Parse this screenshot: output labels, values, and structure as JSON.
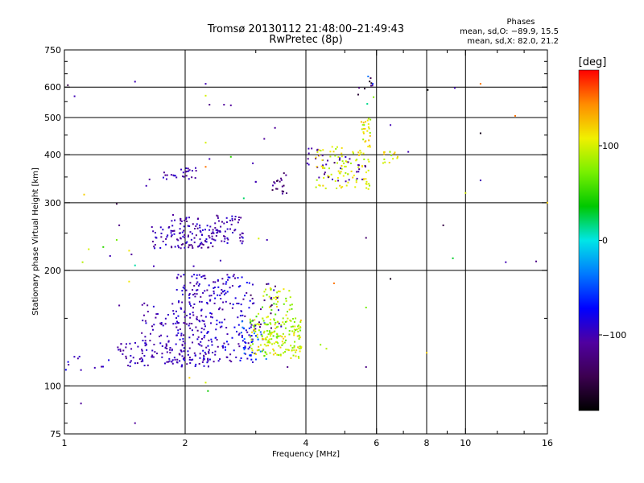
{
  "chart_data": {
    "type": "scatter",
    "title": "Tromsø 20130112 21:48:00–21:49:43",
    "subtitle": "RwPretec (8p)",
    "xlabel": "Frequency [MHz]",
    "ylabel": "Stationary phase Virtual Height [km]",
    "x_scale": "log",
    "y_scale": "log",
    "xlim": [
      1,
      16
    ],
    "ylim": [
      75,
      750
    ],
    "x_ticks": [
      1,
      2,
      4,
      6,
      8,
      10,
      16
    ],
    "x_tick_labels": [
      "1",
      "2",
      "4",
      "6",
      "8",
      "10",
      "16"
    ],
    "x_minor_ticks": [
      3,
      5,
      7,
      9,
      12,
      14
    ],
    "y_ticks": [
      75,
      100,
      200,
      300,
      400,
      500,
      600,
      750
    ],
    "y_tick_labels": [
      "75",
      "100",
      "200",
      "300",
      "400",
      "500",
      "600",
      "750"
    ],
    "y_minor_ticks": [
      80,
      90,
      150,
      250,
      350,
      450,
      550,
      650,
      700
    ],
    "x_grid": [
      2,
      4,
      6,
      8,
      10
    ],
    "y_grid": [
      100,
      200,
      300,
      400,
      500,
      600
    ],
    "grid": true,
    "phase_info": {
      "heading": "Phases",
      "line1": "mean, sd,O: −89.9, 15.5",
      "line2": "mean, sd,X:  82.0, 21.2"
    },
    "colorbar": {
      "label": "[deg]",
      "min": -180,
      "max": 180,
      "tick_values": [
        100,
        0,
        -100
      ],
      "tick_labels": [
        "100",
        "0",
        "−100"
      ],
      "colors": [
        "#000000",
        "#3c0050",
        "#5000a0",
        "#0000ff",
        "#0078ff",
        "#00e6e6",
        "#00c800",
        "#78f000",
        "#f0f000",
        "#ff8c00",
        "#ff0000"
      ]
    },
    "clusters": [
      {
        "x": [
          1.0,
          1.35
        ],
        "y": [
          110,
          120
        ],
        "phase": [
          -110,
          -75
        ],
        "n": 10
      },
      {
        "x": [
          1.35,
          2.0
        ],
        "y": [
          112,
          130
        ],
        "phase": [
          -115,
          -85
        ],
        "n": 70
      },
      {
        "x": [
          1.55,
          2.0
        ],
        "y": [
          115,
          165
        ],
        "phase": [
          -115,
          -85
        ],
        "n": 70
      },
      {
        "x": [
          1.9,
          2.3
        ],
        "y": [
          112,
          195
        ],
        "phase": [
          -115,
          -80
        ],
        "n": 160
      },
      {
        "x": [
          2.3,
          2.95
        ],
        "y": [
          115,
          195
        ],
        "phase": [
          -115,
          -70
        ],
        "n": 150
      },
      {
        "x": [
          2.75,
          3.2
        ],
        "y": [
          115,
          150
        ],
        "phase": [
          -90,
          -30
        ],
        "n": 30
      },
      {
        "x": [
          2.9,
          3.9
        ],
        "y": [
          118,
          150
        ],
        "phase": [
          60,
          125
        ],
        "n": 190
      },
      {
        "x": [
          3.0,
          3.7
        ],
        "y": [
          150,
          180
        ],
        "phase": [
          50,
          120
        ],
        "n": 40
      },
      {
        "x": [
          2.9,
          3.5
        ],
        "y": [
          140,
          185
        ],
        "phase": [
          -140,
          -90
        ],
        "n": 25
      },
      {
        "x": [
          1.65,
          2.4
        ],
        "y": [
          228,
          262
        ],
        "phase": [
          -120,
          -85
        ],
        "n": 110
      },
      {
        "x": [
          1.85,
          2.2
        ],
        "y": [
          255,
          280
        ],
        "phase": [
          -120,
          -85
        ],
        "n": 20
      },
      {
        "x": [
          2.35,
          2.8
        ],
        "y": [
          235,
          278
        ],
        "phase": [
          -120,
          -85
        ],
        "n": 55
      },
      {
        "x": [
          1.75,
          2.15
        ],
        "y": [
          345,
          370
        ],
        "phase": [
          -120,
          -85
        ],
        "n": 28
      },
      {
        "x": [
          3.3,
          3.6
        ],
        "y": [
          315,
          360
        ],
        "phase": [
          -150,
          -100
        ],
        "n": 20
      },
      {
        "x": [
          4.0,
          4.5
        ],
        "y": [
          370,
          420
        ],
        "phase": [
          -115,
          -90
        ],
        "n": 15
      },
      {
        "x": [
          4.2,
          5.8
        ],
        "y": [
          325,
          420
        ],
        "phase": [
          80,
          125
        ],
        "n": 95
      },
      {
        "x": [
          4.3,
          5.8
        ],
        "y": [
          340,
          400
        ],
        "phase": [
          -140,
          -90
        ],
        "n": 25
      },
      {
        "x": [
          5.5,
          5.8
        ],
        "y": [
          420,
          500
        ],
        "phase": [
          70,
          130
        ],
        "n": 25
      },
      {
        "x": [
          6.2,
          6.8
        ],
        "y": [
          380,
          410
        ],
        "phase": [
          80,
          130
        ],
        "n": 15
      },
      {
        "x": [
          5.4,
          5.9
        ],
        "y": [
          540,
          640
        ],
        "phase": [
          -180,
          120
        ],
        "n": 12
      }
    ],
    "points": [
      {
        "x": 1.02,
        "y": 607,
        "phase": -150
      },
      {
        "x": 1.06,
        "y": 568,
        "phase": -100
      },
      {
        "x": 1.5,
        "y": 620,
        "phase": -100
      },
      {
        "x": 2.25,
        "y": 612,
        "phase": -100
      },
      {
        "x": 2.25,
        "y": 570,
        "phase": 100
      },
      {
        "x": 2.3,
        "y": 540,
        "phase": -120
      },
      {
        "x": 2.5,
        "y": 540,
        "phase": -110
      },
      {
        "x": 2.6,
        "y": 538,
        "phase": -110
      },
      {
        "x": 3.35,
        "y": 470,
        "phase": -110
      },
      {
        "x": 3.15,
        "y": 440,
        "phase": -110
      },
      {
        "x": 2.25,
        "y": 430,
        "phase": 100
      },
      {
        "x": 2.3,
        "y": 390,
        "phase": -100
      },
      {
        "x": 2.6,
        "y": 395,
        "phase": 50
      },
      {
        "x": 2.95,
        "y": 380,
        "phase": -100
      },
      {
        "x": 1.63,
        "y": 345,
        "phase": -110
      },
      {
        "x": 1.6,
        "y": 332,
        "phase": -100
      },
      {
        "x": 2.25,
        "y": 372,
        "phase": 150
      },
      {
        "x": 3.0,
        "y": 340,
        "phase": -100
      },
      {
        "x": 1.12,
        "y": 315,
        "phase": 120
      },
      {
        "x": 1.35,
        "y": 298,
        "phase": -150
      },
      {
        "x": 2.8,
        "y": 308,
        "phase": 20
      },
      {
        "x": 3.0,
        "y": 340,
        "phase": -100
      },
      {
        "x": 1.37,
        "y": 262,
        "phase": -120
      },
      {
        "x": 1.25,
        "y": 230,
        "phase": 50
      },
      {
        "x": 1.15,
        "y": 227,
        "phase": 100
      },
      {
        "x": 1.45,
        "y": 225,
        "phase": 110
      },
      {
        "x": 1.47,
        "y": 220,
        "phase": -110
      },
      {
        "x": 1.35,
        "y": 240,
        "phase": 70
      },
      {
        "x": 1.11,
        "y": 210,
        "phase": 90
      },
      {
        "x": 1.3,
        "y": 218,
        "phase": -100
      },
      {
        "x": 2.45,
        "y": 212,
        "phase": -100
      },
      {
        "x": 3.05,
        "y": 242,
        "phase": 100
      },
      {
        "x": 3.2,
        "y": 240,
        "phase": -100
      },
      {
        "x": 1.5,
        "y": 206,
        "phase": 10
      },
      {
        "x": 1.45,
        "y": 187,
        "phase": 110
      },
      {
        "x": 1.37,
        "y": 162,
        "phase": -110
      },
      {
        "x": 1.67,
        "y": 205,
        "phase": -100
      },
      {
        "x": 2.1,
        "y": 205,
        "phase": -100
      },
      {
        "x": 2.05,
        "y": 105,
        "phase": 120
      },
      {
        "x": 2.25,
        "y": 102,
        "phase": 100
      },
      {
        "x": 2.28,
        "y": 97,
        "phase": 40
      },
      {
        "x": 1.1,
        "y": 90,
        "phase": -110
      },
      {
        "x": 1.5,
        "y": 80,
        "phase": -110
      },
      {
        "x": 1.1,
        "y": 110,
        "phase": -100
      },
      {
        "x": 3.6,
        "y": 112,
        "phase": -120
      },
      {
        "x": 4.35,
        "y": 128,
        "phase": 80
      },
      {
        "x": 4.5,
        "y": 125,
        "phase": 90
      },
      {
        "x": 4.7,
        "y": 185,
        "phase": 150
      },
      {
        "x": 5.65,
        "y": 243,
        "phase": -130
      },
      {
        "x": 5.65,
        "y": 160,
        "phase": 70
      },
      {
        "x": 5.65,
        "y": 112,
        "phase": -120
      },
      {
        "x": 6.5,
        "y": 190,
        "phase": -170
      },
      {
        "x": 6.5,
        "y": 478,
        "phase": -100
      },
      {
        "x": 7.2,
        "y": 407,
        "phase": -100
      },
      {
        "x": 8.05,
        "y": 590,
        "phase": -180
      },
      {
        "x": 8.0,
        "y": 122,
        "phase": 120
      },
      {
        "x": 8.8,
        "y": 262,
        "phase": -150
      },
      {
        "x": 9.3,
        "y": 215,
        "phase": 30
      },
      {
        "x": 9.4,
        "y": 597,
        "phase": -100
      },
      {
        "x": 10.0,
        "y": 318,
        "phase": 100
      },
      {
        "x": 10.9,
        "y": 612,
        "phase": 150
      },
      {
        "x": 10.9,
        "y": 455,
        "phase": -170
      },
      {
        "x": 10.9,
        "y": 343,
        "phase": -100
      },
      {
        "x": 12.6,
        "y": 210,
        "phase": -100
      },
      {
        "x": 13.3,
        "y": 505,
        "phase": 150
      },
      {
        "x": 15.0,
        "y": 211,
        "phase": -120
      },
      {
        "x": 16.0,
        "y": 300,
        "phase": 120
      }
    ]
  }
}
